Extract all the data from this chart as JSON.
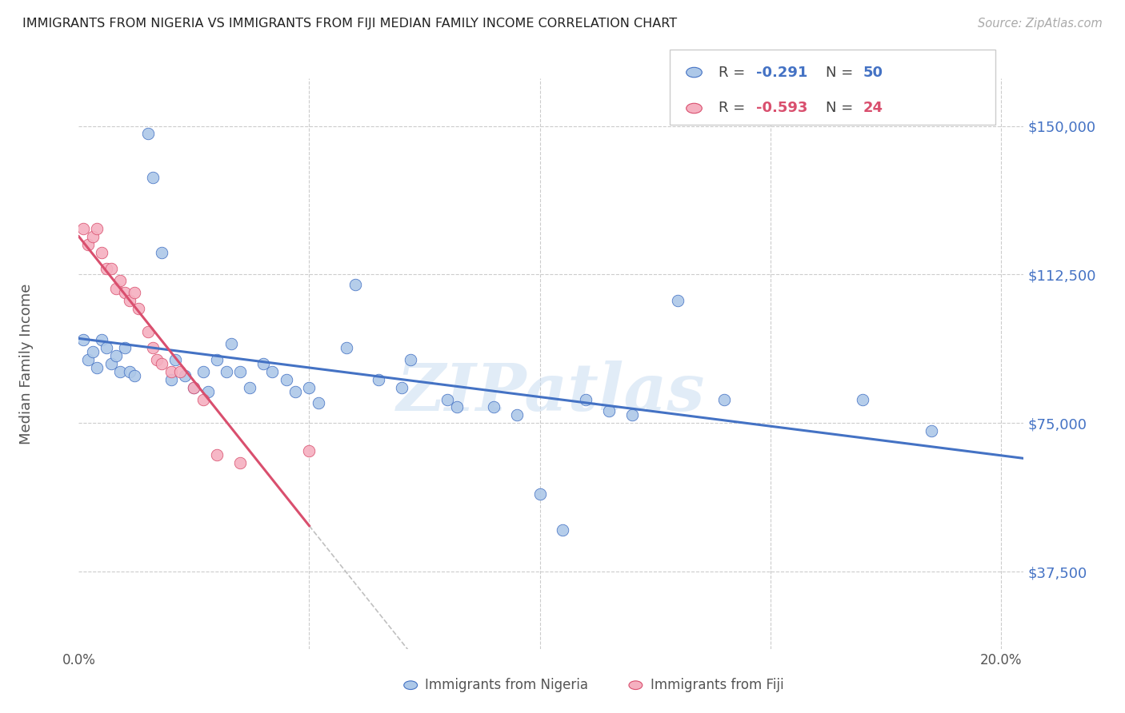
{
  "title": "IMMIGRANTS FROM NIGERIA VS IMMIGRANTS FROM FIJI MEDIAN FAMILY INCOME CORRELATION CHART",
  "source": "Source: ZipAtlas.com",
  "ylabel": "Median Family Income",
  "xlim": [
    0.0,
    0.205
  ],
  "ylim": [
    18000,
    162000
  ],
  "yticks": [
    37500,
    75000,
    112500,
    150000
  ],
  "xticks": [
    0.0,
    0.05,
    0.1,
    0.15,
    0.2
  ],
  "nigeria_color": "#adc8e8",
  "fiji_color": "#f5b0c0",
  "nigeria_line_color": "#4472c4",
  "fiji_line_color": "#d94f6e",
  "nigeria_R": -0.291,
  "nigeria_N": 50,
  "fiji_R": -0.593,
  "fiji_N": 24,
  "nigeria_scatter": [
    [
      0.001,
      96000
    ],
    [
      0.002,
      91000
    ],
    [
      0.003,
      93000
    ],
    [
      0.004,
      89000
    ],
    [
      0.005,
      96000
    ],
    [
      0.006,
      94000
    ],
    [
      0.007,
      90000
    ],
    [
      0.008,
      92000
    ],
    [
      0.009,
      88000
    ],
    [
      0.01,
      94000
    ],
    [
      0.011,
      88000
    ],
    [
      0.012,
      87000
    ],
    [
      0.015,
      148000
    ],
    [
      0.016,
      137000
    ],
    [
      0.018,
      118000
    ],
    [
      0.02,
      86000
    ],
    [
      0.021,
      91000
    ],
    [
      0.023,
      87000
    ],
    [
      0.025,
      84000
    ],
    [
      0.027,
      88000
    ],
    [
      0.028,
      83000
    ],
    [
      0.03,
      91000
    ],
    [
      0.032,
      88000
    ],
    [
      0.033,
      95000
    ],
    [
      0.035,
      88000
    ],
    [
      0.037,
      84000
    ],
    [
      0.04,
      90000
    ],
    [
      0.042,
      88000
    ],
    [
      0.045,
      86000
    ],
    [
      0.047,
      83000
    ],
    [
      0.05,
      84000
    ],
    [
      0.052,
      80000
    ],
    [
      0.058,
      94000
    ],
    [
      0.06,
      110000
    ],
    [
      0.065,
      86000
    ],
    [
      0.07,
      84000
    ],
    [
      0.072,
      91000
    ],
    [
      0.08,
      81000
    ],
    [
      0.082,
      79000
    ],
    [
      0.09,
      79000
    ],
    [
      0.095,
      77000
    ],
    [
      0.1,
      57000
    ],
    [
      0.105,
      48000
    ],
    [
      0.11,
      81000
    ],
    [
      0.115,
      78000
    ],
    [
      0.12,
      77000
    ],
    [
      0.13,
      106000
    ],
    [
      0.14,
      81000
    ],
    [
      0.17,
      81000
    ],
    [
      0.185,
      73000
    ]
  ],
  "fiji_scatter": [
    [
      0.001,
      124000
    ],
    [
      0.002,
      120000
    ],
    [
      0.003,
      122000
    ],
    [
      0.004,
      124000
    ],
    [
      0.005,
      118000
    ],
    [
      0.006,
      114000
    ],
    [
      0.007,
      114000
    ],
    [
      0.008,
      109000
    ],
    [
      0.009,
      111000
    ],
    [
      0.01,
      108000
    ],
    [
      0.011,
      106000
    ],
    [
      0.012,
      108000
    ],
    [
      0.013,
      104000
    ],
    [
      0.015,
      98000
    ],
    [
      0.016,
      94000
    ],
    [
      0.017,
      91000
    ],
    [
      0.018,
      90000
    ],
    [
      0.02,
      88000
    ],
    [
      0.022,
      88000
    ],
    [
      0.025,
      84000
    ],
    [
      0.027,
      81000
    ],
    [
      0.03,
      67000
    ],
    [
      0.035,
      65000
    ],
    [
      0.05,
      68000
    ]
  ],
  "watermark": "ZIPatlas",
  "background_color": "#ffffff",
  "grid_color": "#cccccc"
}
